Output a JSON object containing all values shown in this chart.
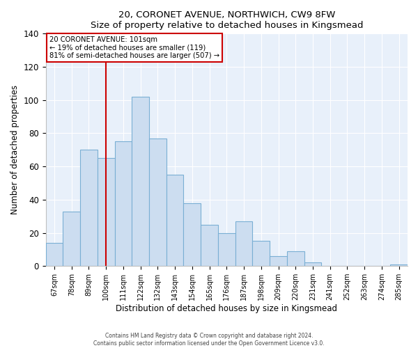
{
  "title": "20, CORONET AVENUE, NORTHWICH, CW9 8FW",
  "subtitle": "Size of property relative to detached houses in Kingsmead",
  "xlabel": "Distribution of detached houses by size in Kingsmead",
  "ylabel": "Number of detached properties",
  "bar_labels": [
    "67sqm",
    "78sqm",
    "89sqm",
    "100sqm",
    "111sqm",
    "122sqm",
    "132sqm",
    "143sqm",
    "154sqm",
    "165sqm",
    "176sqm",
    "187sqm",
    "198sqm",
    "209sqm",
    "220sqm",
    "231sqm",
    "241sqm",
    "252sqm",
    "263sqm",
    "274sqm",
    "285sqm"
  ],
  "bar_values": [
    14,
    33,
    70,
    65,
    75,
    102,
    77,
    55,
    38,
    25,
    20,
    27,
    15,
    6,
    9,
    2,
    0,
    0,
    0,
    0,
    1
  ],
  "bar_color": "#ccddf0",
  "bar_edge_color": "#7aafd4",
  "plot_bg_color": "#e8f0fa",
  "vline_x": 3,
  "vline_color": "#cc0000",
  "annotation_title": "20 CORONET AVENUE: 101sqm",
  "annotation_line1": "← 19% of detached houses are smaller (119)",
  "annotation_line2": "81% of semi-detached houses are larger (507) →",
  "annotation_box_edge": "#cc0000",
  "ylim": [
    0,
    140
  ],
  "yticks": [
    0,
    20,
    40,
    60,
    80,
    100,
    120,
    140
  ],
  "footer1": "Contains HM Land Registry data © Crown copyright and database right 2024.",
  "footer2": "Contains public sector information licensed under the Open Government Licence v3.0."
}
